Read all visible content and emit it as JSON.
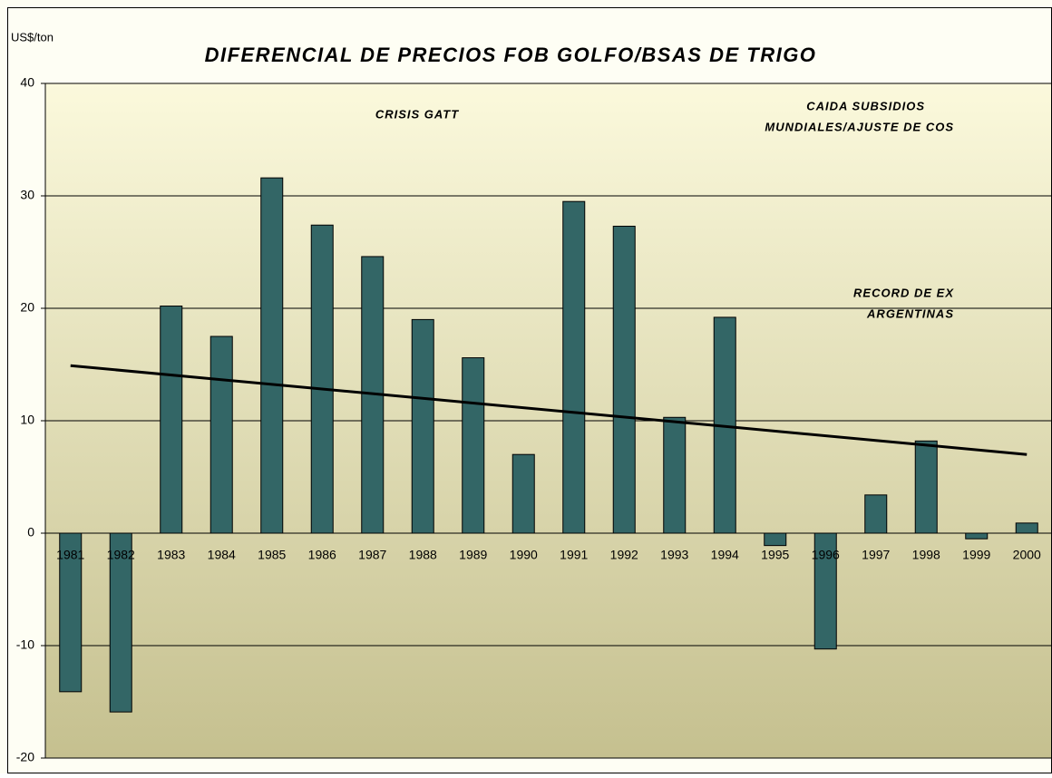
{
  "chart_data": {
    "type": "bar",
    "title": "DIFERENCIAL DE PRECIOS FOB GOLFO/BSAS DE TRIGO",
    "y_label": "US$/ton",
    "annotations": [
      "CRISIS GATT",
      "CAIDA SUBSIDIOS",
      "MUNDIALES/AJUSTE DE COS",
      "RECORD DE EX",
      "ARGENTINAS"
    ],
    "categories": [
      "1981",
      "1982",
      "1983",
      "1984",
      "1985",
      "1986",
      "1987",
      "1988",
      "1989",
      "1990",
      "1991",
      "1992",
      "1993",
      "1994",
      "1995",
      "1996",
      "1997",
      "1998",
      "1999",
      "2000"
    ],
    "values": [
      -14.1,
      -15.9,
      20.2,
      17.5,
      31.6,
      27.4,
      24.6,
      19.0,
      15.6,
      7.0,
      29.5,
      27.3,
      10.3,
      19.2,
      -1.1,
      -10.3,
      3.4,
      8.2,
      -0.5,
      0.9
    ],
    "color": "#336666",
    "trendline": {
      "values": [
        14.9,
        7.0
      ],
      "color": "#000000"
    },
    "ylim": [
      -20,
      40
    ],
    "yticks": [
      -20,
      -10,
      0,
      10,
      20,
      30,
      40
    ],
    "grid": true
  }
}
